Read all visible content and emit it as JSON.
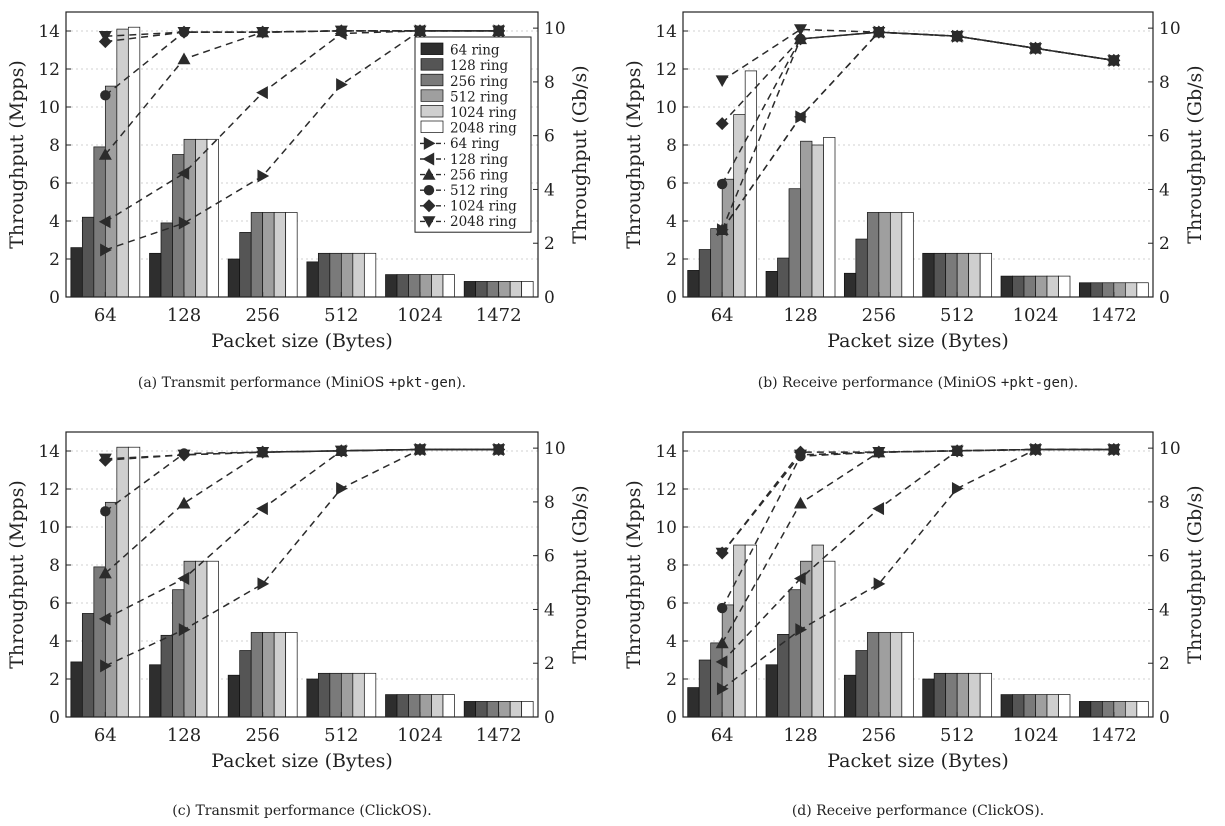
{
  "figure": {
    "colors": {
      "bar_fills": [
        "#2e2e2e",
        "#555555",
        "#7a7a7a",
        "#9f9f9f",
        "#cfcfcf",
        "#ffffff"
      ],
      "line": "#2b2b2b",
      "grid": "#d0d0d0"
    },
    "markers": [
      "triangle-right",
      "triangle-left",
      "triangle-up",
      "circle",
      "diamond",
      "triangle-down"
    ]
  },
  "chart_data": [
    {
      "type": "bar",
      "title": "",
      "caption": {
        "prefix": "(a)  Transmit performance (MiniOS ",
        "code": "+pkt-gen",
        "suffix": ")."
      },
      "xlabel": "Packet size (Bytes)",
      "ylabel": "Throughput (Mpps)",
      "ylabel2": "Throughput (Gb/s)",
      "categories": [
        "64",
        "128",
        "256",
        "512",
        "1024",
        "1472"
      ],
      "ylim": [
        0,
        15
      ],
      "yticks": [
        0,
        2,
        4,
        6,
        8,
        10,
        12,
        14
      ],
      "ylim2": [
        0,
        10.6
      ],
      "yticks2": [
        0,
        2,
        4,
        6,
        8,
        10
      ],
      "grid": "horizontal dotted",
      "legend": {
        "placement": "top-right",
        "entries": [
          "64 ring",
          "128 ring",
          "256 ring",
          "512 ring",
          "1024 ring",
          "2048 ring",
          "64 ring",
          "128 ring",
          "256 ring",
          "512 ring",
          "1024 ring",
          "2048 ring"
        ]
      },
      "bar_series": [
        {
          "name": "64 ring",
          "values": [
            2.6,
            2.3,
            2.0,
            1.85,
            1.18,
            0.82
          ]
        },
        {
          "name": "128 ring",
          "values": [
            4.2,
            3.9,
            3.4,
            2.3,
            1.18,
            0.82
          ]
        },
        {
          "name": "256 ring",
          "values": [
            7.9,
            7.5,
            4.45,
            2.3,
            1.18,
            0.82
          ]
        },
        {
          "name": "512 ring",
          "values": [
            11.1,
            8.3,
            4.45,
            2.3,
            1.18,
            0.82
          ]
        },
        {
          "name": "1024 ring",
          "values": [
            14.1,
            8.3,
            4.45,
            2.3,
            1.18,
            0.82
          ]
        },
        {
          "name": "2048 ring",
          "values": [
            14.2,
            8.3,
            4.45,
            2.3,
            1.18,
            0.82
          ]
        }
      ],
      "line_series": [
        {
          "name": "64 ring",
          "values": [
            1.75,
            2.75,
            4.5,
            7.9,
            9.9,
            9.9
          ]
        },
        {
          "name": "128 ring",
          "values": [
            2.8,
            4.6,
            7.6,
            9.8,
            9.9,
            9.9
          ]
        },
        {
          "name": "256 ring",
          "values": [
            5.3,
            8.85,
            9.85,
            9.9,
            9.9,
            9.9
          ]
        },
        {
          "name": "512 ring",
          "values": [
            7.5,
            9.85,
            9.85,
            9.9,
            9.9,
            9.9
          ]
        },
        {
          "name": "1024 ring",
          "values": [
            9.5,
            9.85,
            9.85,
            9.9,
            9.9,
            9.9
          ]
        },
        {
          "name": "2048 ring",
          "values": [
            9.7,
            9.85,
            9.85,
            9.9,
            9.9,
            9.9
          ]
        }
      ]
    },
    {
      "type": "bar",
      "title": "",
      "caption": {
        "prefix": "(b)  Receive performance (MiniOS ",
        "code": "+pkt-gen",
        "suffix": ")."
      },
      "xlabel": "Packet size (Bytes)",
      "ylabel": "Throughput (Mpps)",
      "ylabel2": "Throughput (Gb/s)",
      "categories": [
        "64",
        "128",
        "256",
        "512",
        "1024",
        "1472"
      ],
      "ylim": [
        0,
        15
      ],
      "yticks": [
        0,
        2,
        4,
        6,
        8,
        10,
        12,
        14
      ],
      "ylim2": [
        0,
        10.6
      ],
      "yticks2": [
        0,
        2,
        4,
        6,
        8,
        10
      ],
      "grid": "horizontal dotted",
      "bar_series": [
        {
          "name": "64 ring",
          "values": [
            1.4,
            1.35,
            1.25,
            2.3,
            1.1,
            0.75
          ]
        },
        {
          "name": "128 ring",
          "values": [
            2.5,
            2.05,
            3.05,
            2.3,
            1.1,
            0.75
          ]
        },
        {
          "name": "256 ring",
          "values": [
            3.6,
            5.7,
            4.45,
            2.3,
            1.1,
            0.75
          ]
        },
        {
          "name": "512 ring",
          "values": [
            6.2,
            8.2,
            4.45,
            2.3,
            1.1,
            0.75
          ]
        },
        {
          "name": "1024 ring",
          "values": [
            9.6,
            8.0,
            4.45,
            2.3,
            1.1,
            0.75
          ]
        },
        {
          "name": "2048 ring",
          "values": [
            11.9,
            8.4,
            4.45,
            2.3,
            1.1,
            0.75
          ]
        }
      ],
      "line_series": [
        {
          "name": "64 ring",
          "values": [
            2.5,
            6.7,
            9.85,
            9.7,
            9.25,
            8.8
          ]
        },
        {
          "name": "128 ring",
          "values": [
            2.5,
            6.7,
            9.85,
            9.7,
            9.25,
            8.8
          ]
        },
        {
          "name": "256 ring",
          "values": [
            2.5,
            9.6,
            9.85,
            9.7,
            9.25,
            8.8
          ]
        },
        {
          "name": "512 ring",
          "values": [
            4.2,
            9.6,
            9.85,
            9.7,
            9.25,
            8.8
          ]
        },
        {
          "name": "1024 ring",
          "values": [
            6.45,
            9.6,
            9.85,
            9.7,
            9.25,
            8.8
          ]
        },
        {
          "name": "2048 ring",
          "values": [
            8.05,
            9.95,
            9.85,
            9.7,
            9.25,
            8.8
          ]
        }
      ]
    },
    {
      "type": "bar",
      "title": "",
      "caption": {
        "prefix": "(c)  Transmit performance (ClickOS).",
        "code": "",
        "suffix": ""
      },
      "xlabel": "Packet size (Bytes)",
      "ylabel": "Throughput (Mpps)",
      "ylabel2": "Throughput (Gb/s)",
      "categories": [
        "64",
        "128",
        "256",
        "512",
        "1024",
        "1472"
      ],
      "ylim": [
        0,
        15
      ],
      "yticks": [
        0,
        2,
        4,
        6,
        8,
        10,
        12,
        14
      ],
      "ylim2": [
        0,
        10.6
      ],
      "yticks2": [
        0,
        2,
        4,
        6,
        8,
        10
      ],
      "grid": "horizontal dotted",
      "bar_series": [
        {
          "name": "64 ring",
          "values": [
            2.9,
            2.75,
            2.2,
            2.0,
            1.18,
            0.82
          ]
        },
        {
          "name": "128 ring",
          "values": [
            5.45,
            4.3,
            3.5,
            2.3,
            1.18,
            0.82
          ]
        },
        {
          "name": "256 ring",
          "values": [
            7.9,
            6.7,
            4.45,
            2.3,
            1.18,
            0.82
          ]
        },
        {
          "name": "512 ring",
          "values": [
            11.3,
            8.2,
            4.45,
            2.3,
            1.18,
            0.82
          ]
        },
        {
          "name": "1024 ring",
          "values": [
            14.2,
            8.2,
            4.45,
            2.3,
            1.18,
            0.82
          ]
        },
        {
          "name": "2048 ring",
          "values": [
            14.2,
            8.2,
            4.45,
            2.3,
            1.18,
            0.82
          ]
        }
      ],
      "line_series": [
        {
          "name": "64 ring",
          "values": [
            1.9,
            3.25,
            4.95,
            8.5,
            9.95,
            9.95
          ]
        },
        {
          "name": "128 ring",
          "values": [
            3.65,
            5.15,
            7.75,
            9.9,
            9.95,
            9.95
          ]
        },
        {
          "name": "256 ring",
          "values": [
            5.35,
            7.95,
            9.85,
            9.9,
            9.95,
            9.95
          ]
        },
        {
          "name": "512 ring",
          "values": [
            7.65,
            9.8,
            9.85,
            9.9,
            9.95,
            9.95
          ]
        },
        {
          "name": "1024 ring",
          "values": [
            9.55,
            9.75,
            9.85,
            9.9,
            9.95,
            9.95
          ]
        },
        {
          "name": "2048 ring",
          "values": [
            9.6,
            9.75,
            9.85,
            9.9,
            9.95,
            9.95
          ]
        }
      ]
    },
    {
      "type": "bar",
      "title": "",
      "caption": {
        "prefix": "(d)  Receive performance (ClickOS).",
        "code": "",
        "suffix": ""
      },
      "xlabel": "Packet size (Bytes)",
      "ylabel": "Throughput (Mpps)",
      "ylabel2": "Throughput (Gb/s)",
      "categories": [
        "64",
        "128",
        "256",
        "512",
        "1024",
        "1472"
      ],
      "ylim": [
        0,
        15
      ],
      "yticks": [
        0,
        2,
        4,
        6,
        8,
        10,
        12,
        14
      ],
      "ylim2": [
        0,
        10.6
      ],
      "yticks2": [
        0,
        2,
        4,
        6,
        8,
        10
      ],
      "grid": "horizontal dotted",
      "bar_series": [
        {
          "name": "64 ring",
          "values": [
            1.55,
            2.75,
            2.2,
            2.0,
            1.18,
            0.82
          ]
        },
        {
          "name": "128 ring",
          "values": [
            3.0,
            4.35,
            3.5,
            2.3,
            1.18,
            0.82
          ]
        },
        {
          "name": "256 ring",
          "values": [
            3.9,
            6.7,
            4.45,
            2.3,
            1.18,
            0.82
          ]
        },
        {
          "name": "512 ring",
          "values": [
            5.9,
            8.2,
            4.45,
            2.3,
            1.18,
            0.82
          ]
        },
        {
          "name": "1024 ring",
          "values": [
            9.05,
            9.05,
            4.45,
            2.3,
            1.18,
            0.82
          ]
        },
        {
          "name": "2048 ring",
          "values": [
            9.05,
            8.2,
            4.45,
            2.3,
            1.18,
            0.82
          ]
        }
      ],
      "line_series": [
        {
          "name": "64 ring",
          "values": [
            1.05,
            3.25,
            4.95,
            8.5,
            9.95,
            9.95
          ]
        },
        {
          "name": "128 ring",
          "values": [
            2.05,
            5.15,
            7.75,
            9.9,
            9.95,
            9.95
          ]
        },
        {
          "name": "256 ring",
          "values": [
            2.75,
            7.95,
            9.85,
            9.9,
            9.95,
            9.95
          ]
        },
        {
          "name": "512 ring",
          "values": [
            4.05,
            9.7,
            9.85,
            9.9,
            9.95,
            9.95
          ]
        },
        {
          "name": "1024 ring",
          "values": [
            6.1,
            9.85,
            9.85,
            9.9,
            9.95,
            9.95
          ]
        },
        {
          "name": "2048 ring",
          "values": [
            6.1,
            9.75,
            9.85,
            9.9,
            9.95,
            9.95
          ]
        }
      ]
    }
  ]
}
